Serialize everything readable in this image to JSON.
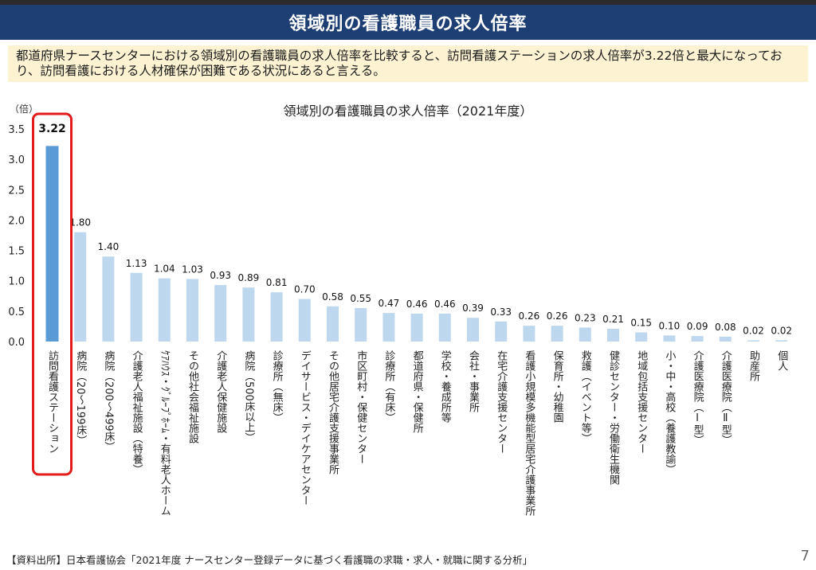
{
  "header": {
    "title": "領域別の看護職員の求人倍率"
  },
  "summary": {
    "text": "都道府県ナースセンターにおける領域別の看護職員の求人倍率を比較すると、訪問看護ステーションの求人倍率が3.22倍と最大になっており、訪問看護における人材確保が困難である状況にあると言える。"
  },
  "chart_data": {
    "type": "bar",
    "title": "領域別の看護職員の求人倍率（2021年度）",
    "ylabel": "（倍）",
    "ylim": [
      0,
      3.5
    ],
    "yticks": [
      "0.0",
      "0.5",
      "1.0",
      "1.5",
      "2.0",
      "2.5",
      "3.0",
      "3.5"
    ],
    "grid": false,
    "categories": [
      "訪問看護ステーション",
      "病院（20～199床）",
      "病院（200～499床）",
      "介護老人福祉施設（特養）",
      "ｹｱﾊｳｽ・ｸﾞﾙｰﾌﾟﾎｰﾑ・有料老人ホーム",
      "その他社会福祉施設",
      "介護老人保健施設",
      "病院（500床以上）",
      "診療所（無床）",
      "デイサービス・デイケアセンター",
      "その他居宅介護支援事業所",
      "市区町村・保健センター",
      "診療所（有床）",
      "都道府県・保健所",
      "学校・養成所等",
      "会社・事業所",
      "在宅介護支援センター",
      "看護小規模多機能型居宅介護事業所",
      "保育所・幼稚園",
      "救護（イベント等）",
      "健診センター・労働衛生機関",
      "地域包括支援センター",
      "小・中・高校（養護教諭）",
      "介護医療院（Ⅰ型）",
      "介護医療院（Ⅱ型）",
      "助産所",
      "個人"
    ],
    "values": [
      3.22,
      1.8,
      1.4,
      1.13,
      1.04,
      1.03,
      0.93,
      0.89,
      0.81,
      0.7,
      0.58,
      0.55,
      0.47,
      0.46,
      0.46,
      0.39,
      0.33,
      0.26,
      0.26,
      0.23,
      0.21,
      0.15,
      0.1,
      0.09,
      0.08,
      0.02,
      0.02
    ],
    "value_labels": [
      "3.22",
      "1.80",
      "1.40",
      "1.13",
      "1.04",
      "1.03",
      "0.93",
      "0.89",
      "0.81",
      "0.70",
      "0.58",
      "0.55",
      "0.47",
      "0.46",
      "0.46",
      "0.39",
      "0.33",
      "0.26",
      "0.26",
      "0.23",
      "0.21",
      "0.15",
      "0.10",
      "0.09",
      "0.08",
      "0.02",
      "0.02"
    ],
    "highlight_index": 0,
    "colors": {
      "highlight_bar": "#5b9bd5",
      "bar": "#bdd7ee",
      "highlight_box": "#e31b1b"
    }
  },
  "footer": {
    "source": "【資料出所】日本看護協会「2021年度 ナースセンター登録データに基づく看護職の求職・求人・就職に関する分析」",
    "page": "7"
  }
}
